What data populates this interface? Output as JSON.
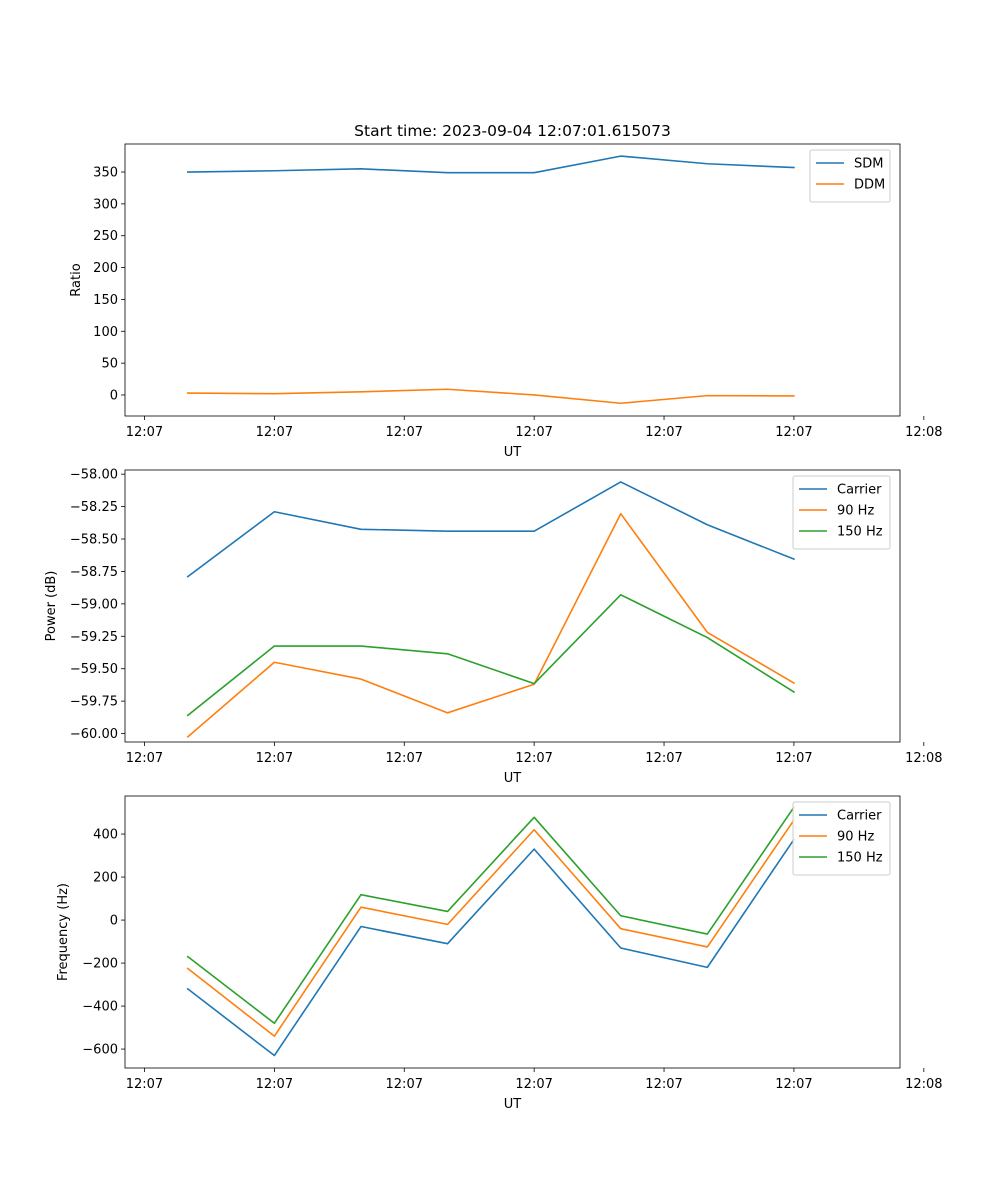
{
  "figure_title": "Start time: 2023-09-04 12:07:01.615073",
  "chart_data": [
    {
      "type": "line",
      "title": "Start time: 2023-09-04 12:07:01.615073",
      "xlabel": "UT",
      "ylabel": "Ratio",
      "x": [
        0.4,
        0.6,
        0.8,
        1.0,
        1.2,
        1.4,
        1.6,
        1.8
      ],
      "xlim": [
        0.255,
        2.045
      ],
      "x_ticks": [
        0.3,
        0.6,
        0.9,
        1.2,
        1.5,
        1.8,
        2.1
      ],
      "x_tick_labels": [
        "12:07",
        "12:07",
        "12:07",
        "12:07",
        "12:07",
        "12:07",
        "12:08"
      ],
      "ylim": [
        -33,
        394
      ],
      "y_ticks": [
        0,
        50,
        100,
        150,
        200,
        250,
        300,
        350
      ],
      "y_tick_labels": [
        "0",
        "50",
        "100",
        "150",
        "200",
        "250",
        "300",
        "350"
      ],
      "legend_position": "upper-right",
      "series": [
        {
          "name": "SDM",
          "color": "#1f77b4",
          "values": [
            350,
            352,
            355,
            349,
            349,
            375,
            363,
            357
          ]
        },
        {
          "name": "DDM",
          "color": "#ff7f0e",
          "values": [
            3,
            2,
            5,
            9,
            0,
            -13,
            -1,
            -1.5
          ]
        }
      ]
    },
    {
      "type": "line",
      "title": "",
      "xlabel": "UT",
      "ylabel": "Power (dB)",
      "x": [
        0.4,
        0.6,
        0.8,
        1.0,
        1.2,
        1.4,
        1.6,
        1.8
      ],
      "xlim": [
        0.255,
        2.045
      ],
      "x_ticks": [
        0.3,
        0.6,
        0.9,
        1.2,
        1.5,
        1.8,
        2.1
      ],
      "x_tick_labels": [
        "12:07",
        "12:07",
        "12:07",
        "12:07",
        "12:07",
        "12:07",
        "12:08"
      ],
      "ylim": [
        -60.065,
        -57.968
      ],
      "y_ticks": [
        -60.0,
        -59.75,
        -59.5,
        -59.25,
        -59.0,
        -58.75,
        -58.5,
        -58.25,
        -58.0
      ],
      "y_tick_labels": [
        "−60.00",
        "−59.75",
        "−59.50",
        "−59.25",
        "−59.00",
        "−58.75",
        "−58.50",
        "−58.25",
        "−58.00"
      ],
      "legend_position": "upper-right",
      "series": [
        {
          "name": "Carrier",
          "color": "#1f77b4",
          "values": [
            -58.79,
            -58.29,
            -58.425,
            -58.44,
            -58.44,
            -58.06,
            -58.39,
            -58.655
          ]
        },
        {
          "name": "90 Hz",
          "color": "#ff7f0e",
          "values": [
            -60.025,
            -59.45,
            -59.58,
            -59.84,
            -59.62,
            -58.305,
            -59.22,
            -59.61
          ]
        },
        {
          "name": "150 Hz",
          "color": "#2ca02c",
          "values": [
            -59.86,
            -59.325,
            -59.325,
            -59.385,
            -59.615,
            -58.93,
            -59.26,
            -59.68
          ]
        }
      ]
    },
    {
      "type": "line",
      "title": "",
      "xlabel": "UT",
      "ylabel": "Frequency (Hz)",
      "x": [
        0.4,
        0.6,
        0.8,
        1.0,
        1.2,
        1.4,
        1.6,
        1.8
      ],
      "xlim": [
        0.255,
        2.045
      ],
      "x_ticks": [
        0.3,
        0.6,
        0.9,
        1.2,
        1.5,
        1.8,
        2.1
      ],
      "x_tick_labels": [
        "12:07",
        "12:07",
        "12:07",
        "12:07",
        "12:07",
        "12:07",
        "12:08"
      ],
      "ylim": [
        -688,
        577
      ],
      "y_ticks": [
        -600,
        -400,
        -200,
        0,
        200,
        400
      ],
      "y_tick_labels": [
        "−600",
        "−400",
        "−200",
        "0",
        "200",
        "400"
      ],
      "legend_position": "upper-right",
      "series": [
        {
          "name": "Carrier",
          "color": "#1f77b4",
          "values": [
            -320,
            -630,
            -30,
            -110,
            330,
            -130,
            -220,
            375
          ]
        },
        {
          "name": "90 Hz",
          "color": "#ff7f0e",
          "values": [
            -225,
            -540,
            60,
            -20,
            420,
            -40,
            -125,
            465
          ]
        },
        {
          "name": "150 Hz",
          "color": "#2ca02c",
          "values": [
            -170,
            -480,
            118,
            40,
            478,
            20,
            -65,
            525
          ]
        }
      ]
    }
  ]
}
